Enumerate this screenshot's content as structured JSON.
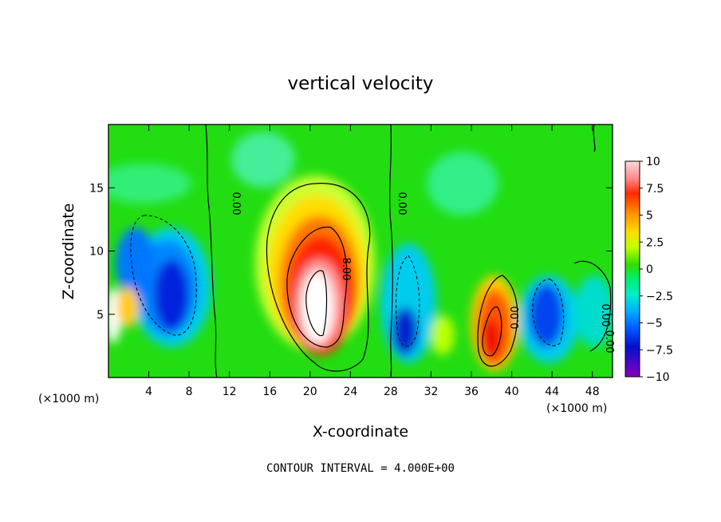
{
  "chart_data": {
    "type": "heatmap",
    "title": "vertical velocity",
    "xlabel": "X-coordinate",
    "ylabel": "Z-coordinate",
    "x_unit_note": "(×1000 m)",
    "x_unit_note_right": "(×1000 m)",
    "xlim": [
      0,
      50
    ],
    "ylim": [
      0,
      20
    ],
    "x_ticks": [
      4,
      8,
      12,
      16,
      20,
      24,
      28,
      32,
      36,
      40,
      44,
      48
    ],
    "y_ticks": [
      5,
      10,
      15
    ],
    "colorbar": {
      "ticks": [
        "10",
        "7.5",
        "5",
        "2.5",
        "0",
        "−2.5",
        "−5",
        "−7.5",
        "−10"
      ],
      "range": [
        -10,
        10
      ]
    },
    "contour_labels": [
      "0.00",
      "0.00",
      "8.00",
      "0.00",
      "0.00",
      "0.00"
    ],
    "footer": "CONTOUR INTERVAL = 4.000E+00",
    "features": [
      {
        "x": 21.5,
        "z": 6.5,
        "value": 10
      },
      {
        "x": 38.0,
        "z": 3.5,
        "value": 8
      },
      {
        "x": 6.0,
        "z": 6.0,
        "value": -10
      },
      {
        "x": 29.5,
        "z": 3.0,
        "value": -9
      },
      {
        "x": 43.5,
        "z": 5.0,
        "value": -7
      },
      {
        "x": 0.5,
        "z": 4.5,
        "value": 10
      },
      {
        "x": 3.5,
        "z": 7.0,
        "value": -6
      }
    ]
  }
}
